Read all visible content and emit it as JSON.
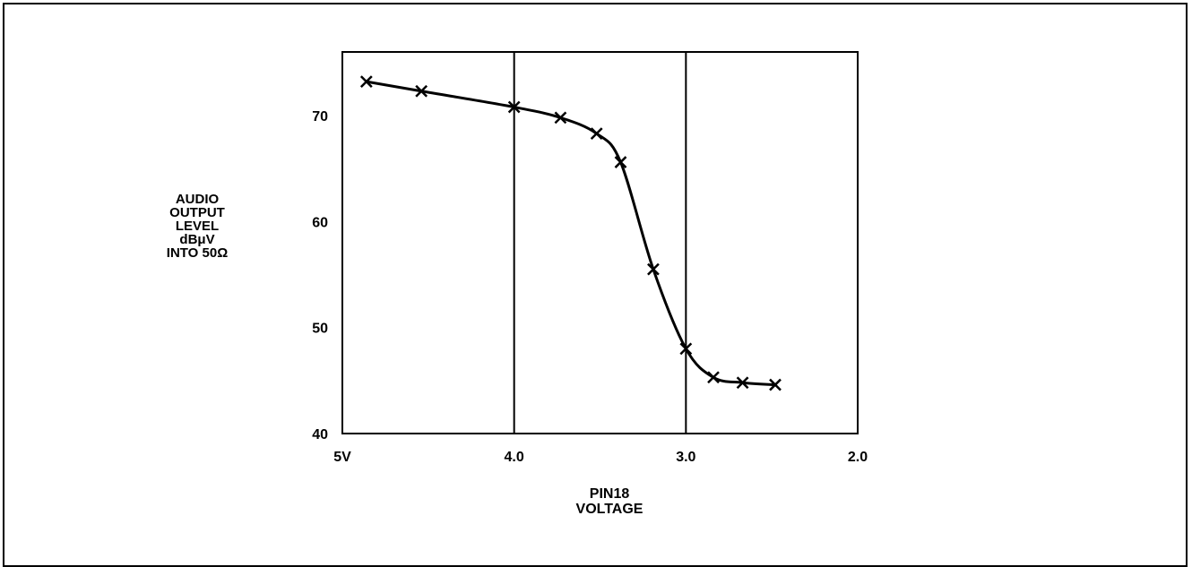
{
  "chart_data": {
    "type": "line",
    "xlabel": [
      "PIN18",
      "VOLTAGE"
    ],
    "ylabel": [
      "AUDIO",
      "OUTPUT",
      "LEVEL",
      "dBμV",
      "INTO 50Ω"
    ],
    "xlim": [
      5,
      2
    ],
    "ylim": [
      40,
      76
    ],
    "x_ticks": [
      5,
      4,
      3,
      2
    ],
    "x_tick_labels": [
      "5V",
      "4.0",
      "3.0",
      "2.0"
    ],
    "y_ticks": [
      40,
      50,
      60,
      70
    ],
    "y_tick_labels": [
      "40",
      "50",
      "60",
      "70"
    ],
    "vertical_gridlines": [
      4,
      3
    ],
    "grid": false,
    "series": [
      {
        "marker": "x",
        "color": "#000000",
        "x": [
          4.86,
          4.54,
          4.0,
          3.73,
          3.52,
          3.38,
          3.19,
          3.0,
          2.84,
          2.67,
          2.48
        ],
        "y": [
          73.2,
          72.3,
          70.8,
          69.8,
          68.3,
          65.6,
          55.5,
          48.0,
          45.3,
          44.8,
          44.6
        ]
      }
    ]
  }
}
